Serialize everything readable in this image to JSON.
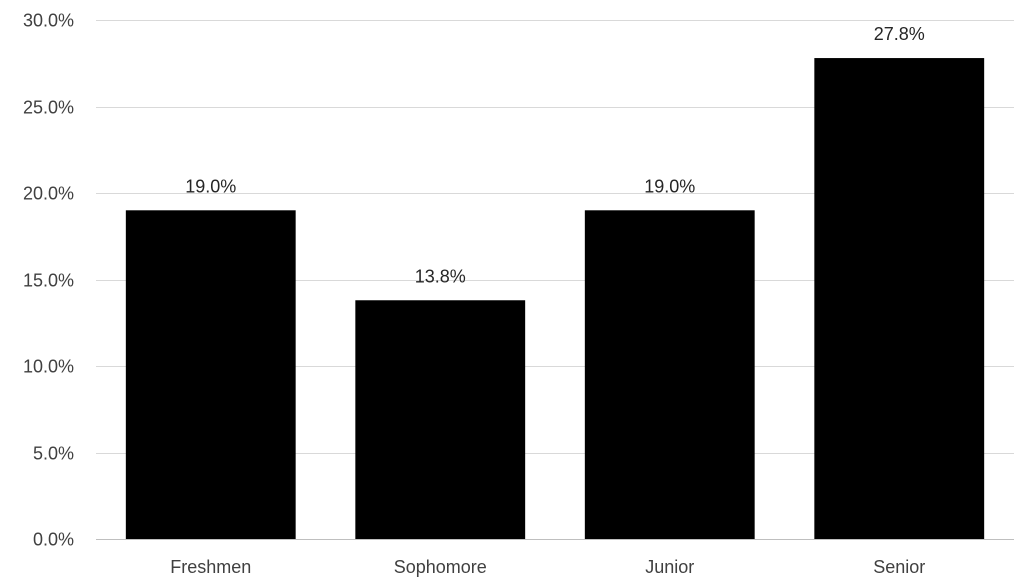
{
  "chart_data": {
    "type": "bar",
    "title": "",
    "xlabel": "",
    "ylabel": "",
    "categories": [
      "Freshmen",
      "Sophomore",
      "Junior",
      "Senior"
    ],
    "values": [
      19.0,
      13.8,
      19.0,
      27.8
    ],
    "data_labels": [
      "19.0%",
      "13.8%",
      "19.0%",
      "27.8%"
    ],
    "ylim": [
      0,
      30
    ],
    "yticks": [
      0,
      5,
      10,
      15,
      20,
      25,
      30
    ],
    "ytick_labels": [
      "0.0%",
      "5.0%",
      "10.0%",
      "15.0%",
      "20.0%",
      "25.0%",
      "30.0%"
    ],
    "grid": true,
    "legend": "none",
    "bar_color": "#000000",
    "grid_color": "#d9d9d9",
    "text_color": "#404040"
  }
}
